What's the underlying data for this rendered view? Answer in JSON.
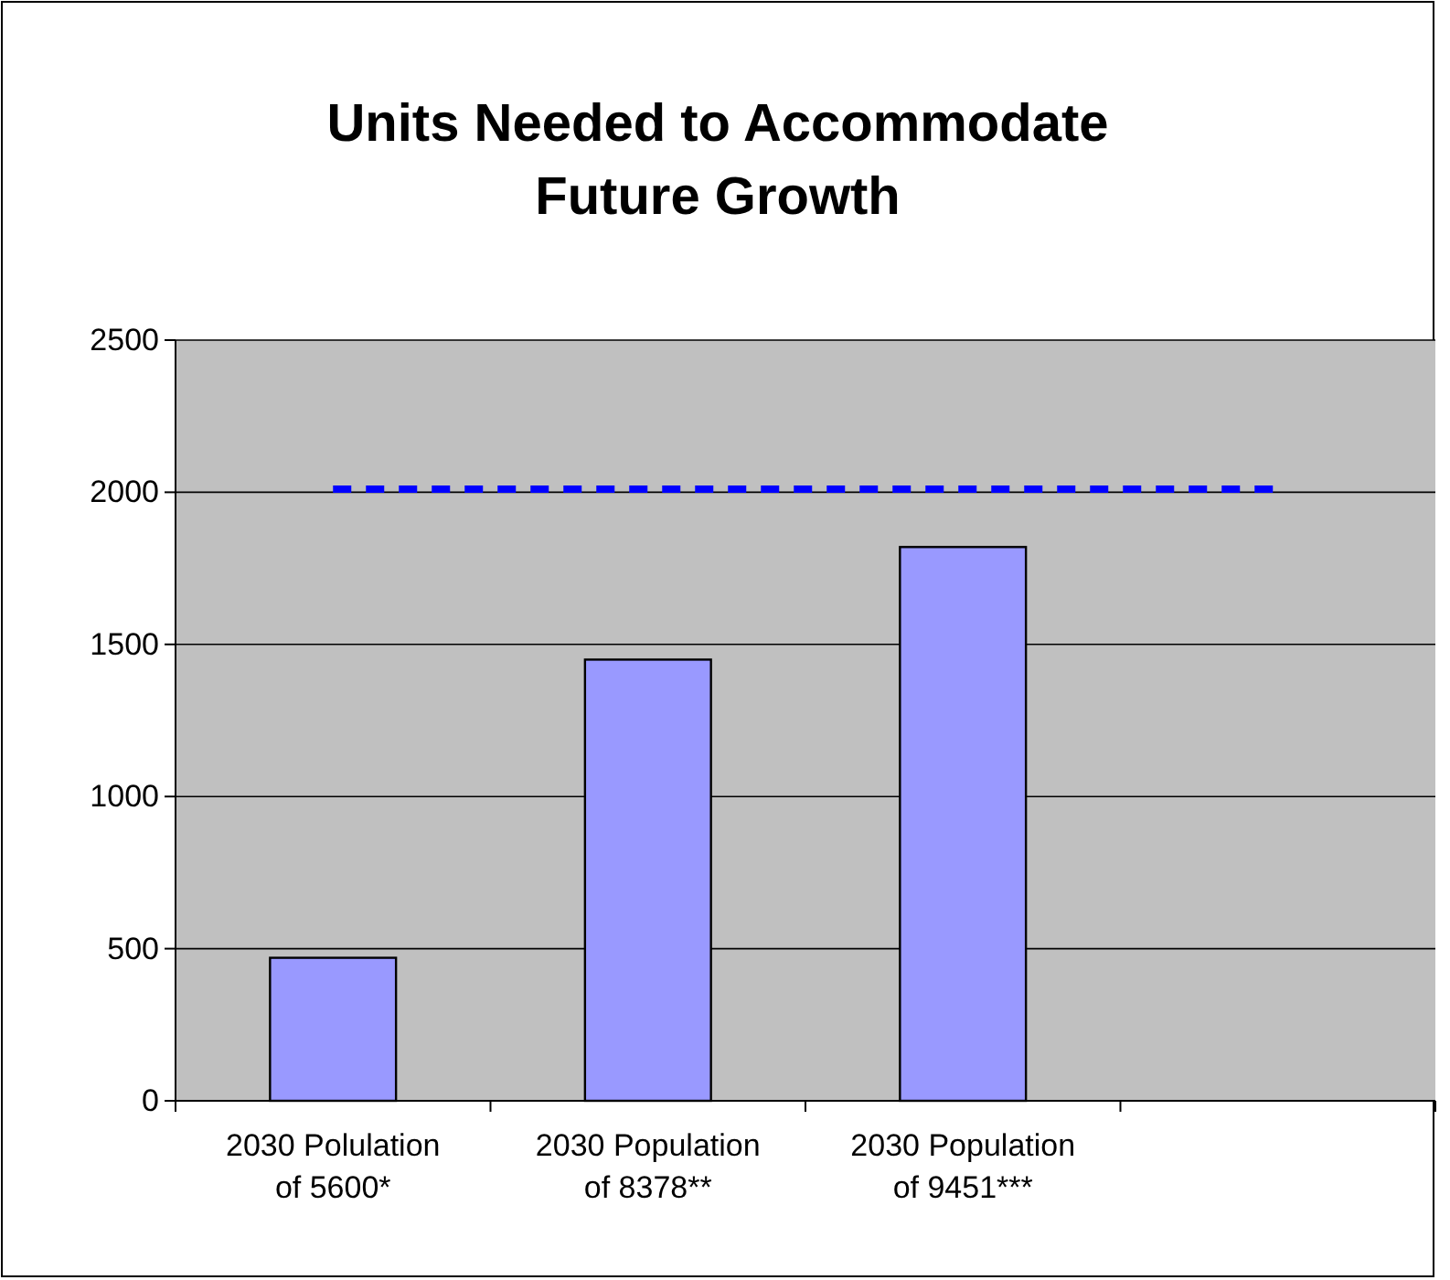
{
  "chart_data": {
    "type": "bar",
    "title": "Units Needed to Accommodate Future Growth",
    "categories": [
      "2030 Polulation of 5600*",
      "2030 Population of 8378**",
      "2030 Population of 9451***",
      null
    ],
    "series": [
      {
        "color": "#9999ff",
        "values": [
          470,
          1450,
          1820,
          null
        ]
      },
      {
        "type": "line",
        "color": "#0000ff",
        "values": [
          2010,
          2010,
          2010,
          2010
        ],
        "line_style": "dashed",
        "marker": "none"
      }
    ],
    "ylim": [
      0,
      2500
    ],
    "yticks": [
      0,
      500,
      1000,
      1500,
      2000,
      2500
    ],
    "grid": "y"
  }
}
